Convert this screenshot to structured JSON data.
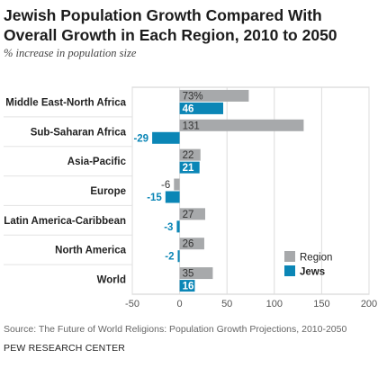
{
  "header": {
    "title": "Jewish Population Growth Compared With Overall Growth in Each Region, 2010 to 2050",
    "subtitle": "% increase in population size"
  },
  "footer": {
    "source": "Source: The Future of World Religions: Population Growth Projections, 2010-2050",
    "org": "PEW RESEARCH CENTER"
  },
  "chart_data": {
    "type": "bar",
    "orientation": "horizontal",
    "categories": [
      "Middle East-North Africa",
      "Sub-Saharan Africa",
      "Asia-Pacific",
      "Europe",
      "Latin America-Caribbean",
      "North America",
      "World"
    ],
    "series": [
      {
        "name": "Region",
        "color": "#a7a9ab",
        "values": [
          73,
          131,
          22,
          -6,
          27,
          26,
          35
        ],
        "labels": [
          "73%",
          "131",
          "22",
          "-6",
          "27",
          "26",
          "35"
        ]
      },
      {
        "name": "Jews",
        "color": "#0b86b6",
        "values": [
          46,
          -29,
          21,
          -15,
          -3,
          -2,
          16
        ],
        "labels": [
          "46",
          "-29",
          "21",
          "-15",
          "-3",
          "-2",
          "16"
        ]
      }
    ],
    "xlim": [
      -50,
      200
    ],
    "xticks": [
      -50,
      0,
      50,
      100,
      150,
      200
    ],
    "grid": true,
    "legend_position": "bottom-right"
  }
}
